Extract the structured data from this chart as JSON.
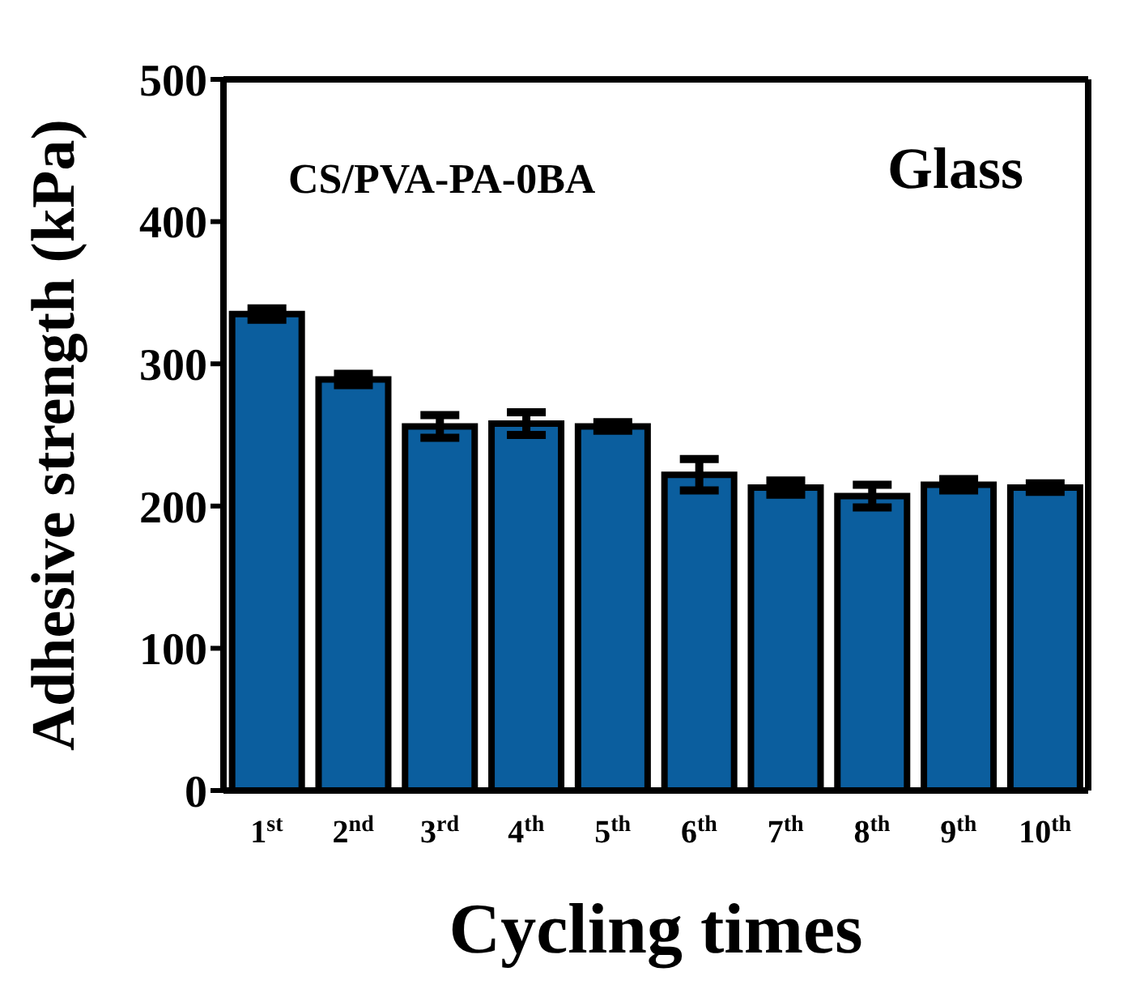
{
  "chart_data": {
    "type": "bar",
    "xlabel": "Cycling times",
    "ylabel": "Adhesive strength (kPa)",
    "categories": [
      "1$^{st}$",
      "2$^{nd}$",
      "3$^{rd}$",
      "4$^{th}$",
      "5$^{th}$",
      "6$^{th}$",
      "7$^{th}$",
      "8$^{th}$",
      "9$^{th}$",
      "10$^{th}$"
    ],
    "values": [
      335,
      289,
      256,
      258,
      256,
      222,
      213,
      207,
      215,
      213
    ],
    "errors": [
      4,
      4,
      8,
      8,
      3,
      11,
      5,
      8,
      4,
      3
    ],
    "color": "#0b5e9e",
    "ylim": [
      0,
      500
    ],
    "yticks": [
      0,
      100,
      200,
      300,
      400,
      500
    ],
    "annotations": [
      "CS/PVA-PA-0BA",
      "Glass"
    ],
    "grid": false,
    "legend": false
  }
}
